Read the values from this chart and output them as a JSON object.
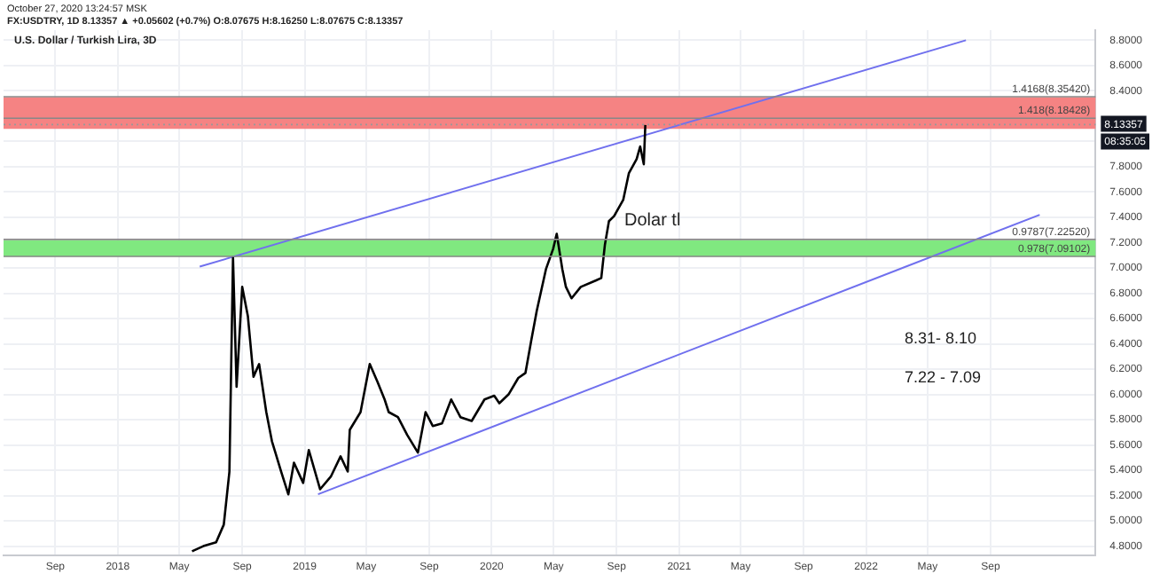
{
  "chart_data": {
    "type": "line",
    "title": "U.S. Dollar / Turkish Lira, 3D",
    "subtitle": "FX:USDTRY, 1D 8.13357 ▲ +0.05602 (+0.7%) O:8.07675 H:8.16250 L:8.07675 C:8.13357",
    "xlim": [
      "2017-05-23",
      "2023-03-25"
    ],
    "ylim": [
      4.73,
      8.88
    ],
    "xticks": [
      {
        "value": "2017-09-01",
        "label": "Sep"
      },
      {
        "value": "2018-01-01",
        "label": "2018"
      },
      {
        "value": "2018-05-01",
        "label": "May"
      },
      {
        "value": "2018-09-01",
        "label": "Sep"
      },
      {
        "value": "2019-01-01",
        "label": "2019"
      },
      {
        "value": "2019-05-01",
        "label": "May"
      },
      {
        "value": "2019-09-01",
        "label": "Sep"
      },
      {
        "value": "2020-01-01",
        "label": "2020"
      },
      {
        "value": "2020-05-01",
        "label": "May"
      },
      {
        "value": "2020-09-01",
        "label": "Sep"
      },
      {
        "value": "2021-01-01",
        "label": "2021"
      },
      {
        "value": "2021-05-01",
        "label": "May"
      },
      {
        "value": "2021-09-01",
        "label": "Sep"
      },
      {
        "value": "2022-01-01",
        "label": "2022"
      },
      {
        "value": "2022-05-01",
        "label": "May"
      },
      {
        "value": "2022-09-01",
        "label": "Sep"
      }
    ],
    "yticks": [
      {
        "value": 4.8,
        "label": "4.8000"
      },
      {
        "value": 5,
        "label": "5.0000"
      },
      {
        "value": 5.2,
        "label": "5.2000"
      },
      {
        "value": 5.4,
        "label": "5.4000"
      },
      {
        "value": 5.6,
        "label": "5.6000"
      },
      {
        "value": 5.8,
        "label": "5.8000"
      },
      {
        "value": 6,
        "label": "6.0000"
      },
      {
        "value": 6.2,
        "label": "6.2000"
      },
      {
        "value": 6.4,
        "label": "6.4000"
      },
      {
        "value": 6.6,
        "label": "6.6000"
      },
      {
        "value": 6.8,
        "label": "6.8000"
      },
      {
        "value": 7,
        "label": "7.0000"
      },
      {
        "value": 7.2,
        "label": "7.2000"
      },
      {
        "value": 7.4,
        "label": "7.4000"
      },
      {
        "value": 7.6,
        "label": "7.6000"
      },
      {
        "value": 7.8,
        "label": "7.8000"
      },
      {
        "value": 8,
        "label": null
      },
      {
        "value": 8.2,
        "label": null
      },
      {
        "value": 8.4,
        "label": "8.4000"
      },
      {
        "value": 8.6,
        "label": "8.6000"
      },
      {
        "value": 8.8,
        "label": "8.8000"
      }
    ],
    "grid": true,
    "series": [
      {
        "color": "#000000",
        "x": [
          "2018-05-26",
          "2018-06-17",
          "2018-07-12",
          "2018-07-27",
          "2018-08-07",
          "2018-08-14",
          "2018-08-21",
          "2018-09-01",
          "2018-09-12",
          "2018-09-23",
          "2018-10-04",
          "2018-10-18",
          "2018-10-29",
          "2018-11-16",
          "2018-11-30",
          "2018-12-11",
          "2018-12-29",
          "2019-01-09",
          "2019-01-31",
          "2019-02-21",
          "2019-03-12",
          "2019-03-26",
          "2019-03-30",
          "2019-04-20",
          "2019-05-08",
          "2019-05-23",
          "2019-06-06",
          "2019-06-14",
          "2019-07-02",
          "2019-07-20",
          "2019-08-10",
          "2019-08-25",
          "2019-09-08",
          "2019-09-26",
          "2019-10-14",
          "2019-11-01",
          "2019-11-23",
          "2019-12-18",
          "2020-01-06",
          "2020-01-16",
          "2020-02-03",
          "2020-02-22",
          "2020-03-07",
          "2020-03-18",
          "2020-03-29",
          "2020-04-16",
          "2020-04-30",
          "2020-05-07",
          "2020-05-18",
          "2020-05-25",
          "2020-06-05",
          "2020-06-23",
          "2020-07-22",
          "2020-08-02",
          "2020-08-09",
          "2020-08-17",
          "2020-08-27",
          "2020-09-14",
          "2020-09-25",
          "2020-10-10",
          "2020-10-17",
          "2020-10-24",
          "2020-10-27"
        ],
        "values": [
          4.76,
          4.8,
          4.83,
          4.97,
          5.39,
          7.08,
          6.06,
          6.85,
          6.62,
          6.14,
          6.24,
          5.86,
          5.63,
          5.39,
          5.21,
          5.46,
          5.3,
          5.56,
          5.25,
          5.35,
          5.51,
          5.39,
          5.72,
          5.86,
          6.24,
          6.1,
          5.96,
          5.86,
          5.82,
          5.68,
          5.54,
          5.86,
          5.75,
          5.77,
          5.96,
          5.82,
          5.79,
          5.96,
          5.99,
          5.93,
          6.0,
          6.13,
          6.17,
          6.42,
          6.66,
          6.99,
          7.15,
          7.27,
          6.99,
          6.85,
          6.76,
          6.85,
          6.9,
          6.92,
          7.18,
          7.37,
          7.41,
          7.54,
          7.75,
          7.86,
          7.96,
          7.82,
          8.13
        ]
      },
      {
        "color": "#7070ee",
        "x": [
          "2018-06-10",
          "2022-07-15"
        ],
        "values": [
          7.01,
          8.8
        ]
      },
      {
        "color": "#7070ee",
        "x": [
          "2019-01-27",
          "2022-12-06"
        ],
        "values": [
          5.21,
          7.42
        ]
      }
    ],
    "bands": [
      {
        "axis": "y",
        "from": 8.1,
        "to": 8.35,
        "color": "#f58383"
      },
      {
        "axis": "y",
        "from": 7.09,
        "to": 7.22,
        "color": "#80e880"
      }
    ],
    "ref_lines": [
      {
        "axis": "y",
        "value": 8.3542,
        "label": "1.4168(8.35420)",
        "color": "#888888"
      },
      {
        "axis": "y",
        "value": 8.18428,
        "label": "1.418(8.18428)",
        "color": "#888888"
      },
      {
        "axis": "y",
        "value": 7.2252,
        "label": "0.9787(7.22520)",
        "color": "#888888"
      },
      {
        "axis": "y",
        "value": 7.09102,
        "label": "0.978(7.09102)",
        "color": "#888888"
      },
      {
        "axis": "y",
        "value": 8.13357,
        "label": "8.13357",
        "color": "#999999",
        "line_style": "dotted"
      }
    ],
    "annotations": [
      "Dolar tl",
      "8.31- 8.10",
      "7.22 - 7.09",
      "08:35:05",
      "October 27, 2020 13:24:57 MSK"
    ]
  }
}
